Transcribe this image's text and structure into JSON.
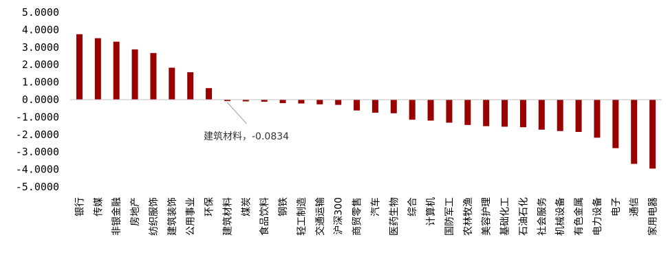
{
  "chart_data": {
    "type": "bar",
    "title": "",
    "xlabel": "",
    "ylabel": "",
    "ylim": [
      -5,
      5
    ],
    "yticks": [
      5,
      4,
      3,
      2,
      1,
      0,
      -1,
      -2,
      -3,
      -4,
      -5
    ],
    "ytick_labels": [
      "5.0000",
      "4.0000",
      "3.0000",
      "2.0000",
      "1.0000",
      "0.0000",
      "-1.0000",
      "-2.0000",
      "-3.0000",
      "-4.0000",
      "-5.0000"
    ],
    "grid": false,
    "bar_color": "#990000",
    "categories": [
      "银行",
      "传媒",
      "非银金融",
      "房地产",
      "纺织服饰",
      "建筑装饰",
      "公用事业",
      "环保",
      "建筑材料",
      "煤炭",
      "食品饮料",
      "钢铁",
      "轻工制造",
      "交通运输",
      "沪深300",
      "商贸零售",
      "汽车",
      "医药生物",
      "综合",
      "计算机",
      "国防军工",
      "农林牧渔",
      "美容护理",
      "基础化工",
      "石油石化",
      "社会服务",
      "机械设备",
      "有色金属",
      "电力设备",
      "电子",
      "通信",
      "家用电器"
    ],
    "values": [
      3.75,
      3.52,
      3.32,
      2.88,
      2.67,
      1.83,
      1.57,
      0.66,
      -0.0834,
      -0.1,
      -0.12,
      -0.2,
      -0.22,
      -0.27,
      -0.3,
      -0.62,
      -0.75,
      -0.78,
      -1.15,
      -1.2,
      -1.32,
      -1.45,
      -1.52,
      -1.55,
      -1.58,
      -1.72,
      -1.8,
      -1.85,
      -2.18,
      -2.78,
      -3.68,
      -3.95
    ],
    "annotation": {
      "category": "建筑材料",
      "text": "建筑材料，-0.0834"
    }
  }
}
